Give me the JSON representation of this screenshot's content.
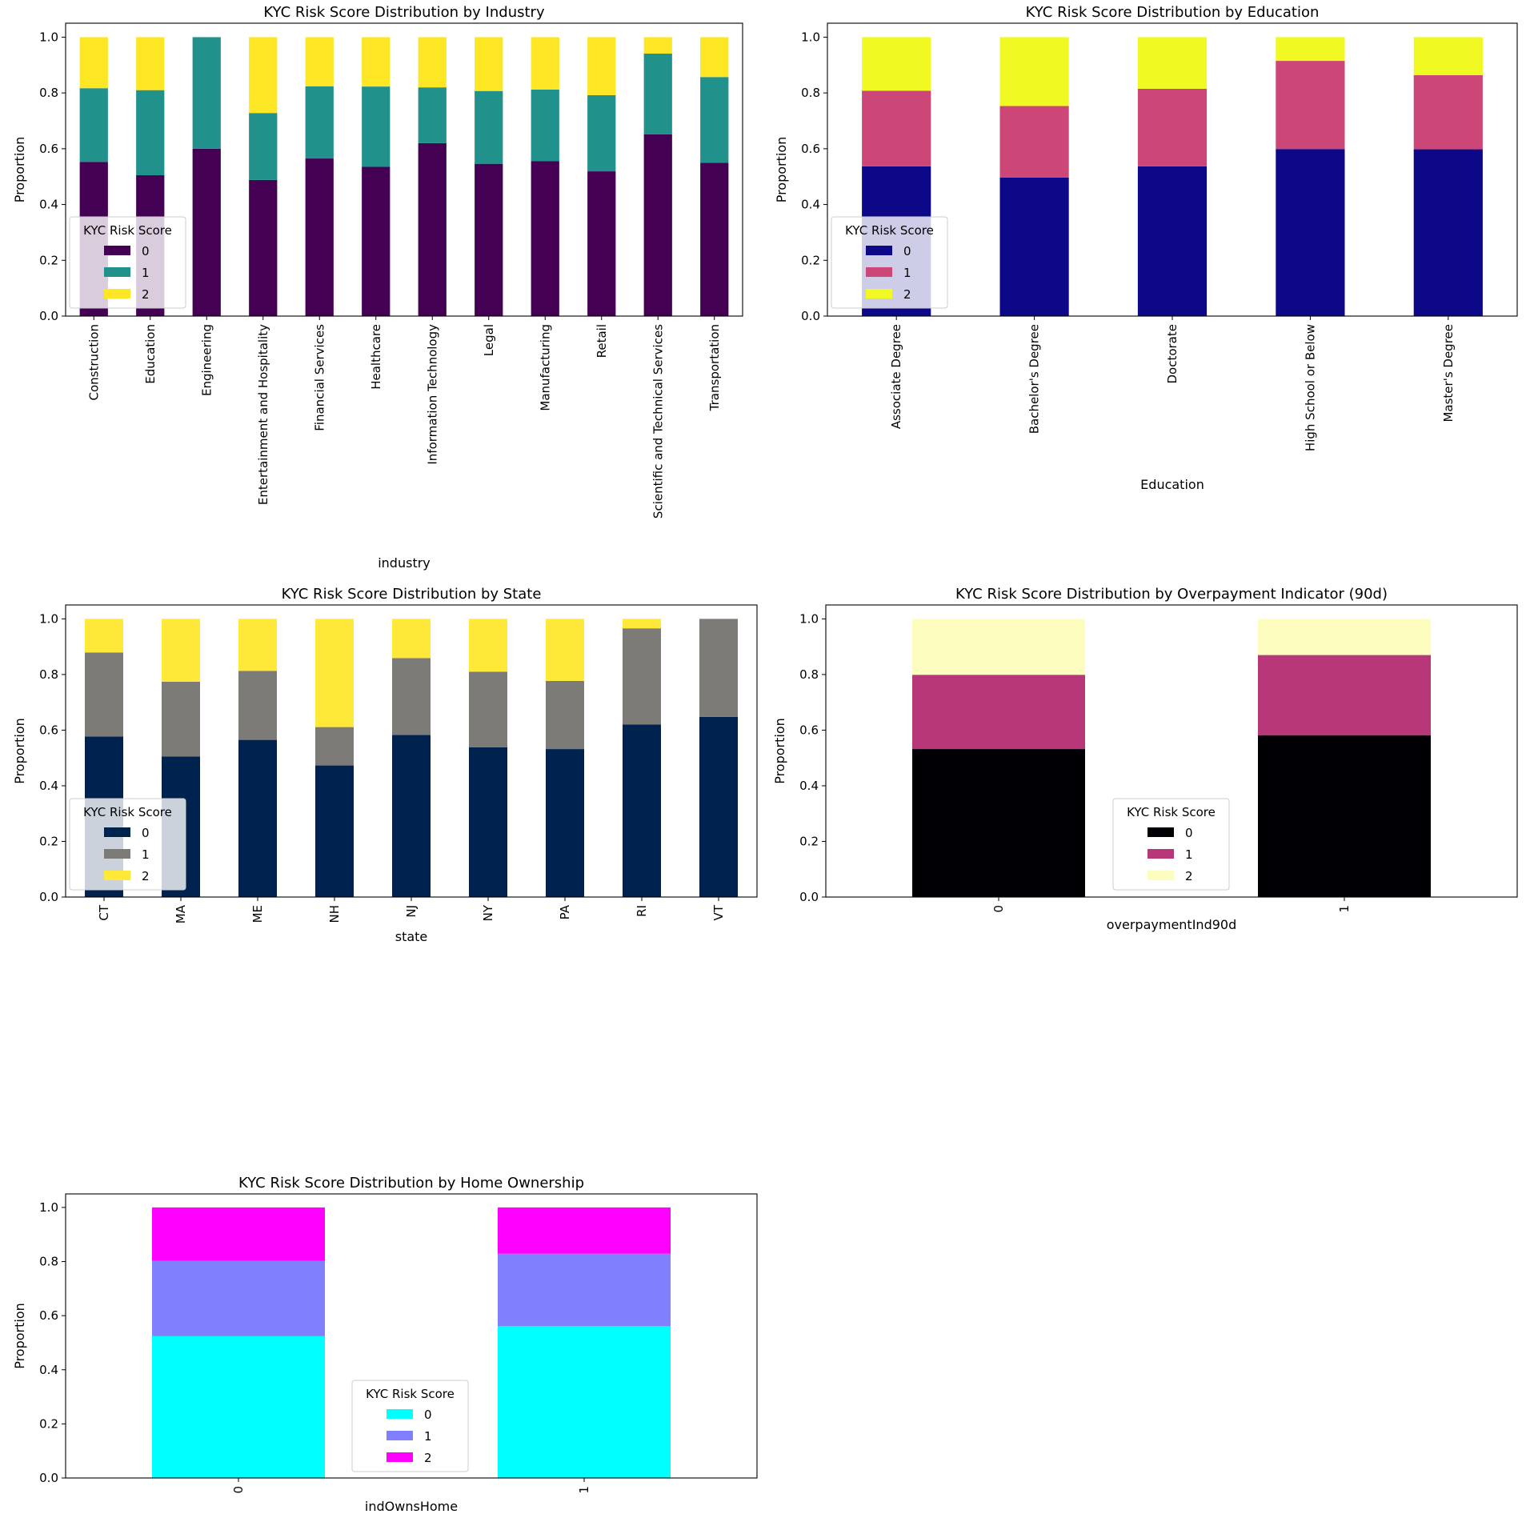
{
  "chart_data": [
    {
      "type": "bar",
      "stacked": true,
      "title": "KYC Risk Score Distribution by Industry",
      "xlabel": "industry",
      "ylabel": "Proportion",
      "ylim": [
        0,
        1.05
      ],
      "yticks": [
        "0.0",
        "0.2",
        "0.4",
        "0.6",
        "0.8",
        "1.0"
      ],
      "categories": [
        "Construction",
        "Education",
        "Engineering",
        "Entertainment and Hospitality",
        "Financial Services",
        "Healthcare",
        "Information Technology",
        "Legal",
        "Manufacturing",
        "Retail",
        "Scientific and Technical Services",
        "Transportation"
      ],
      "legend": {
        "title": "KYC Risk Score",
        "placement": "center-left"
      },
      "series": [
        {
          "name": "0",
          "color": "#440154",
          "values": [
            0.553,
            0.505,
            0.6,
            0.488,
            0.565,
            0.535,
            0.62,
            0.546,
            0.556,
            0.519,
            0.652,
            0.55
          ]
        },
        {
          "name": "1",
          "color": "#21918c",
          "values": [
            0.264,
            0.305,
            0.4,
            0.24,
            0.259,
            0.288,
            0.2,
            0.261,
            0.256,
            0.273,
            0.289,
            0.307
          ]
        },
        {
          "name": "2",
          "color": "#fde725",
          "values": [
            0.183,
            0.19,
            0.0,
            0.272,
            0.176,
            0.177,
            0.18,
            0.193,
            0.188,
            0.208,
            0.059,
            0.143
          ]
        }
      ]
    },
    {
      "type": "bar",
      "stacked": true,
      "title": "KYC Risk Score Distribution by Education",
      "xlabel": "Education",
      "ylabel": "Proportion",
      "ylim": [
        0,
        1.05
      ],
      "yticks": [
        "0.0",
        "0.2",
        "0.4",
        "0.6",
        "0.8",
        "1.0"
      ],
      "categories": [
        "Associate Degree",
        "Bachelor's Degree",
        "Doctorate",
        "High School or Below",
        "Master's Degree"
      ],
      "legend": {
        "title": "KYC Risk Score",
        "placement": "center-left"
      },
      "series": [
        {
          "name": "0",
          "color": "#0d0887",
          "values": [
            0.537,
            0.497,
            0.537,
            0.599,
            0.598
          ]
        },
        {
          "name": "1",
          "color": "#cc4778",
          "values": [
            0.271,
            0.256,
            0.278,
            0.316,
            0.266
          ]
        },
        {
          "name": "2",
          "color": "#f0f921",
          "values": [
            0.192,
            0.247,
            0.185,
            0.085,
            0.136
          ]
        }
      ]
    },
    {
      "type": "bar",
      "stacked": true,
      "title": "KYC Risk Score Distribution by State",
      "xlabel": "state",
      "ylabel": "Proportion",
      "ylim": [
        0,
        1.05
      ],
      "yticks": [
        "0.0",
        "0.2",
        "0.4",
        "0.6",
        "0.8",
        "1.0"
      ],
      "categories": [
        "CT",
        "MA",
        "ME",
        "NH",
        "NJ",
        "NY",
        "PA",
        "RI",
        "VT"
      ],
      "legend": {
        "title": "KYC Risk Score",
        "placement": "lower-left"
      },
      "series": [
        {
          "name": "0",
          "color": "#00224e",
          "values": [
            0.577,
            0.505,
            0.565,
            0.473,
            0.583,
            0.538,
            0.532,
            0.62,
            0.648
          ]
        },
        {
          "name": "1",
          "color": "#7c7b78",
          "values": [
            0.302,
            0.269,
            0.248,
            0.138,
            0.276,
            0.272,
            0.245,
            0.346,
            0.352
          ]
        },
        {
          "name": "2",
          "color": "#fee838",
          "values": [
            0.121,
            0.226,
            0.187,
            0.389,
            0.141,
            0.19,
            0.223,
            0.034,
            0.0
          ]
        }
      ]
    },
    {
      "type": "bar",
      "stacked": true,
      "title": "KYC Risk Score Distribution by Overpayment Indicator (90d)",
      "xlabel": "overpaymentInd90d",
      "ylabel": "Proportion",
      "ylim": [
        0,
        1.05
      ],
      "yticks": [
        "0.0",
        "0.2",
        "0.4",
        "0.6",
        "0.8",
        "1.0"
      ],
      "categories": [
        "0",
        "1"
      ],
      "legend": {
        "title": "KYC Risk Score",
        "placement": "lower-center"
      },
      "series": [
        {
          "name": "0",
          "color": "#000004",
          "values": [
            0.532,
            0.582
          ]
        },
        {
          "name": "1",
          "color": "#b73779",
          "values": [
            0.267,
            0.288
          ]
        },
        {
          "name": "2",
          "color": "#fcfdbf",
          "values": [
            0.201,
            0.13
          ]
        }
      ]
    },
    {
      "type": "bar",
      "stacked": true,
      "title": "KYC Risk Score Distribution by Home Ownership",
      "xlabel": "indOwnsHome",
      "ylabel": "Proportion",
      "ylim": [
        0,
        1.05
      ],
      "yticks": [
        "0.0",
        "0.2",
        "0.4",
        "0.6",
        "0.8",
        "1.0"
      ],
      "categories": [
        "0",
        "1"
      ],
      "legend": {
        "title": "KYC Risk Score",
        "placement": "lower-center"
      },
      "series": [
        {
          "name": "0",
          "color": "#00ffff",
          "values": [
            0.524,
            0.561
          ]
        },
        {
          "name": "1",
          "color": "#8080ff",
          "values": [
            0.279,
            0.268
          ]
        },
        {
          "name": "2",
          "color": "#ff00ff",
          "values": [
            0.197,
            0.171
          ]
        }
      ]
    }
  ]
}
